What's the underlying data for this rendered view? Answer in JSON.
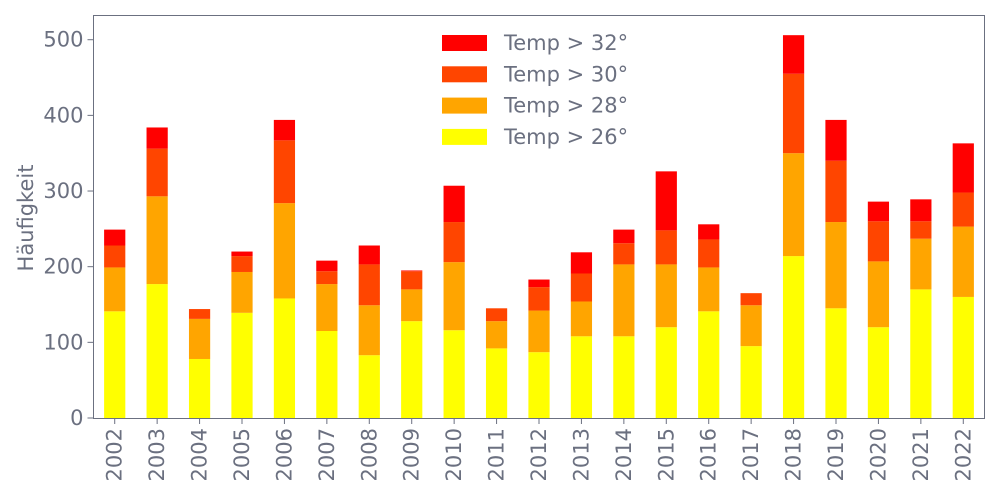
{
  "chart_data": {
    "type": "bar",
    "stacked": true,
    "title": "",
    "xlabel": "",
    "ylabel": "Häufigkeit",
    "ylim": [
      0,
      532
    ],
    "yticks": [
      0,
      100,
      200,
      300,
      400,
      500
    ],
    "grid": false,
    "legend_placement": "top-center",
    "categories": [
      "2002",
      "2003",
      "2004",
      "2005",
      "2006",
      "2007",
      "2008",
      "2009",
      "2010",
      "2011",
      "2012",
      "2013",
      "2014",
      "2015",
      "2016",
      "2017",
      "2018",
      "2019",
      "2020",
      "2021",
      "2022"
    ],
    "series": [
      {
        "name": "Temp > 26°",
        "color": "#ffff00",
        "values": [
          141,
          177,
          78,
          139,
          158,
          115,
          83,
          128,
          116,
          92,
          87,
          108,
          108,
          120,
          141,
          95,
          214,
          145,
          120,
          170,
          160
        ]
      },
      {
        "name": "Temp > 28°",
        "color": "#ffa500",
        "values": [
          58,
          116,
          53,
          54,
          126,
          62,
          66,
          42,
          90,
          36,
          55,
          46,
          95,
          83,
          58,
          54,
          136,
          114,
          87,
          67,
          93
        ]
      },
      {
        "name": "Temp > 30°",
        "color": "#ff4500",
        "values": [
          29,
          63,
          13,
          21,
          83,
          17,
          54,
          24,
          53,
          17,
          31,
          37,
          28,
          45,
          37,
          16,
          105,
          81,
          53,
          23,
          45
        ]
      },
      {
        "name": "Temp > 32°",
        "color": "#ff0000",
        "values": [
          21,
          28,
          0,
          6,
          27,
          14,
          25,
          1,
          48,
          0,
          10,
          28,
          18,
          78,
          20,
          0,
          51,
          54,
          26,
          29,
          65
        ]
      }
    ]
  },
  "colors": {
    "axis": "#6b7080",
    "text": "#6b7080"
  }
}
